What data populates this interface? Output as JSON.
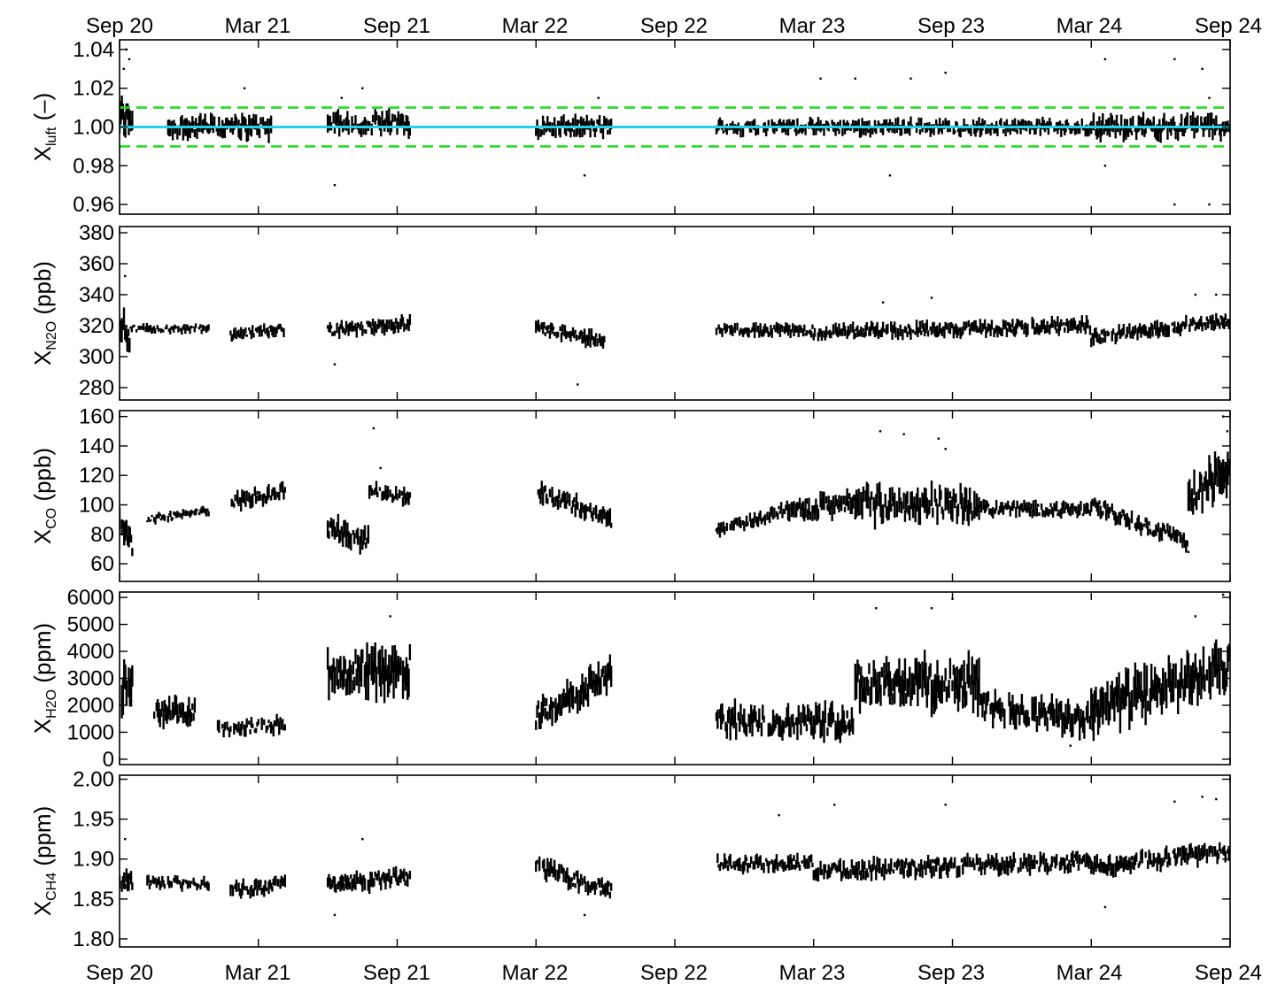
{
  "chart_data": {
    "type": "scatter",
    "x_ticks": [
      "Sep 20",
      "Mar 21",
      "Sep 21",
      "Mar 22",
      "Sep 22",
      "Mar 23",
      "Sep 23",
      "Mar 24",
      "Sep 24"
    ],
    "panels": [
      {
        "ylabel": {
          "main": "X",
          "sub": "luft",
          "tail": " (–)"
        },
        "ylim": [
          0.955,
          1.045
        ],
        "ytick_values": [
          0.96,
          0.98,
          1.0,
          1.02,
          1.04
        ],
        "ytick_labels": [
          "0.96",
          "0.98",
          "1.00",
          "1.02",
          "1.04"
        ],
        "reference_lines": [
          {
            "y": 1.0,
            "style": "solid",
            "color": "#22d3ee"
          },
          {
            "y": 1.01,
            "style": "dashed",
            "color": "#22dd22"
          },
          {
            "y": 0.99,
            "style": "dashed",
            "color": "#22dd22"
          }
        ],
        "segments": [
          {
            "x0": 0.0,
            "x1": 0.1,
            "base": 1.005,
            "spread": 0.01,
            "slope": 0
          },
          {
            "x0": 0.35,
            "x1": 1.1,
            "base": 1.0,
            "spread": 0.006,
            "slope": 0
          },
          {
            "x0": 1.5,
            "x1": 2.1,
            "base": 1.002,
            "spread": 0.006,
            "slope": 0
          },
          {
            "x0": 3.0,
            "x1": 3.55,
            "base": 1.0,
            "spread": 0.005,
            "slope": 0
          },
          {
            "x0": 4.3,
            "x1": 7.0,
            "base": 1.0,
            "spread": 0.004,
            "slope": 0
          },
          {
            "x0": 7.0,
            "x1": 8.0,
            "base": 1.0,
            "spread": 0.006,
            "slope": 0
          }
        ],
        "outliers": [
          [
            0.05,
            1.04
          ],
          [
            0.07,
            1.035
          ],
          [
            0.03,
            1.03
          ],
          [
            0.9,
            1.02
          ],
          [
            1.6,
            1.015
          ],
          [
            1.75,
            1.02
          ],
          [
            1.55,
            0.97
          ],
          [
            3.35,
            0.975
          ],
          [
            3.45,
            1.015
          ],
          [
            5.05,
            1.025
          ],
          [
            5.3,
            1.025
          ],
          [
            5.7,
            1.025
          ],
          [
            5.95,
            1.028
          ],
          [
            5.55,
            0.975
          ],
          [
            7.1,
            1.035
          ],
          [
            7.1,
            0.98
          ],
          [
            7.6,
            0.96
          ],
          [
            7.6,
            1.035
          ],
          [
            7.85,
            0.96
          ],
          [
            7.8,
            1.03
          ],
          [
            7.85,
            1.015
          ]
        ]
      },
      {
        "ylabel": {
          "main": "X",
          "sub": "N2O",
          "tail": " (ppb)"
        },
        "ylim": [
          272,
          384
        ],
        "ytick_values": [
          280,
          300,
          320,
          340,
          360,
          380
        ],
        "ytick_labels": [
          "280",
          "300",
          "320",
          "340",
          "360",
          "380"
        ],
        "reference_lines": [],
        "segments": [
          {
            "x0": 0.0,
            "x1": 0.08,
            "base": 322,
            "spread": 10,
            "slope": -10
          },
          {
            "x0": 0.08,
            "x1": 0.65,
            "base": 318,
            "spread": 3,
            "slope": 0
          },
          {
            "x0": 0.8,
            "x1": 1.2,
            "base": 314,
            "spread": 4,
            "slope": 4
          },
          {
            "x0": 1.5,
            "x1": 2.1,
            "base": 317,
            "spread": 5,
            "slope": 4
          },
          {
            "x0": 3.0,
            "x1": 3.5,
            "base": 318,
            "spread": 5,
            "slope": -8
          },
          {
            "x0": 4.3,
            "x1": 5.0,
            "base": 317,
            "spread": 4,
            "slope": 0
          },
          {
            "x0": 5.0,
            "x1": 7.0,
            "base": 316,
            "spread": 5,
            "slope": 4
          },
          {
            "x0": 7.0,
            "x1": 8.0,
            "base": 312,
            "spread": 5,
            "slope": 12
          }
        ],
        "outliers": [
          [
            0.04,
            352
          ],
          [
            1.55,
            295
          ],
          [
            3.3,
            282
          ],
          [
            5.85,
            338
          ],
          [
            5.5,
            335
          ],
          [
            7.75,
            340
          ],
          [
            7.9,
            340
          ]
        ]
      },
      {
        "ylabel": {
          "main": "X",
          "sub": "CO",
          "tail": " (ppb)"
        },
        "ylim": [
          48,
          164
        ],
        "ytick_values": [
          60,
          80,
          100,
          120,
          140,
          160
        ],
        "ytick_labels": [
          "60",
          "80",
          "100",
          "120",
          "140",
          "160"
        ],
        "reference_lines": [],
        "segments": [
          {
            "x0": 0.0,
            "x1": 0.1,
            "base": 92,
            "spread": 10,
            "slope": -20
          },
          {
            "x0": 0.2,
            "x1": 0.65,
            "base": 90,
            "spread": 3,
            "slope": 6
          },
          {
            "x0": 0.8,
            "x1": 1.2,
            "base": 102,
            "spread": 6,
            "slope": 8
          },
          {
            "x0": 1.5,
            "x1": 1.8,
            "base": 85,
            "spread": 8,
            "slope": -10
          },
          {
            "x0": 1.8,
            "x1": 2.1,
            "base": 110,
            "spread": 6,
            "slope": -6
          },
          {
            "x0": 3.0,
            "x1": 3.55,
            "base": 110,
            "spread": 7,
            "slope": -20
          },
          {
            "x0": 4.3,
            "x1": 4.8,
            "base": 82,
            "spread": 5,
            "slope": 15
          },
          {
            "x0": 4.8,
            "x1": 5.3,
            "base": 95,
            "spread": 8,
            "slope": 8
          },
          {
            "x0": 5.3,
            "x1": 6.2,
            "base": 100,
            "spread": 12,
            "slope": 0
          },
          {
            "x0": 6.2,
            "x1": 7.0,
            "base": 98,
            "spread": 5,
            "slope": -2
          },
          {
            "x0": 7.0,
            "x1": 7.7,
            "base": 100,
            "spread": 6,
            "slope": -25
          },
          {
            "x0": 7.7,
            "x1": 8.0,
            "base": 105,
            "spread": 15,
            "slope": 20
          }
        ],
        "outliers": [
          [
            1.83,
            152
          ],
          [
            1.88,
            125
          ],
          [
            5.48,
            150
          ],
          [
            5.65,
            148
          ],
          [
            5.9,
            145
          ],
          [
            5.95,
            138
          ],
          [
            7.95,
            160
          ],
          [
            7.98,
            150
          ],
          [
            1.65,
            72
          ],
          [
            7.7,
            68
          ]
        ]
      },
      {
        "ylabel": {
          "main": "X",
          "sub": "H2O",
          "tail": " (ppm)"
        },
        "ylim": [
          -200,
          6200
        ],
        "ytick_values": [
          0,
          1000,
          2000,
          3000,
          4000,
          5000,
          6000
        ],
        "ytick_labels": [
          "0",
          "1000",
          "2000",
          "3000",
          "4000",
          "5000",
          "6000"
        ],
        "reference_lines": [],
        "segments": [
          {
            "x0": 0.0,
            "x1": 0.1,
            "base": 2600,
            "spread": 900,
            "slope": 0
          },
          {
            "x0": 0.25,
            "x1": 0.55,
            "base": 1700,
            "spread": 500,
            "slope": 0
          },
          {
            "x0": 0.7,
            "x1": 1.2,
            "base": 1100,
            "spread": 300,
            "slope": 200
          },
          {
            "x0": 1.5,
            "x1": 2.1,
            "base": 3200,
            "spread": 900,
            "slope": 200
          },
          {
            "x0": 3.0,
            "x1": 3.55,
            "base": 1600,
            "spread": 600,
            "slope": 1600
          },
          {
            "x0": 4.3,
            "x1": 5.3,
            "base": 1400,
            "spread": 600,
            "slope": 0
          },
          {
            "x0": 5.3,
            "x1": 6.2,
            "base": 2800,
            "spread": 900,
            "slope": 0
          },
          {
            "x0": 6.2,
            "x1": 7.0,
            "base": 2000,
            "spread": 600,
            "slope": -600
          },
          {
            "x0": 7.0,
            "x1": 8.0,
            "base": 1900,
            "spread": 900,
            "slope": 1500
          }
        ],
        "outliers": [
          [
            1.95,
            5300
          ],
          [
            5.45,
            5600
          ],
          [
            5.85,
            5600
          ],
          [
            6.0,
            5950
          ],
          [
            7.95,
            6100
          ],
          [
            7.75,
            5300
          ],
          [
            6.85,
            500
          ]
        ]
      },
      {
        "ylabel": {
          "main": "X",
          "sub": "CH4",
          "tail": " (ppm)"
        },
        "ylim": [
          1.79,
          2.005
        ],
        "ytick_values": [
          1.8,
          1.85,
          1.9,
          1.95,
          2.0
        ],
        "ytick_labels": [
          "1.80",
          "1.85",
          "1.90",
          "1.95",
          "2.00"
        ],
        "reference_lines": [],
        "segments": [
          {
            "x0": 0.0,
            "x1": 0.1,
            "base": 1.87,
            "spread": 0.015,
            "slope": 0
          },
          {
            "x0": 0.2,
            "x1": 0.65,
            "base": 1.87,
            "spread": 0.008,
            "slope": 0
          },
          {
            "x0": 0.8,
            "x1": 1.2,
            "base": 1.86,
            "spread": 0.01,
            "slope": 0.01
          },
          {
            "x0": 1.5,
            "x1": 2.1,
            "base": 1.868,
            "spread": 0.012,
            "slope": 0.01
          },
          {
            "x0": 3.0,
            "x1": 3.55,
            "base": 1.89,
            "spread": 0.012,
            "slope": -0.03
          },
          {
            "x0": 4.3,
            "x1": 5.0,
            "base": 1.895,
            "spread": 0.01,
            "slope": 0
          },
          {
            "x0": 5.0,
            "x1": 7.0,
            "base": 1.885,
            "spread": 0.012,
            "slope": 0.012
          },
          {
            "x0": 7.0,
            "x1": 8.0,
            "base": 1.89,
            "spread": 0.012,
            "slope": 0.02
          }
        ],
        "outliers": [
          [
            0.04,
            1.925
          ],
          [
            1.55,
            1.83
          ],
          [
            1.75,
            1.925
          ],
          [
            3.35,
            1.83
          ],
          [
            4.75,
            1.955
          ],
          [
            5.15,
            1.968
          ],
          [
            5.95,
            1.968
          ],
          [
            7.6,
            1.972
          ],
          [
            7.8,
            1.978
          ],
          [
            7.9,
            1.975
          ],
          [
            7.1,
            1.84
          ]
        ]
      }
    ]
  }
}
